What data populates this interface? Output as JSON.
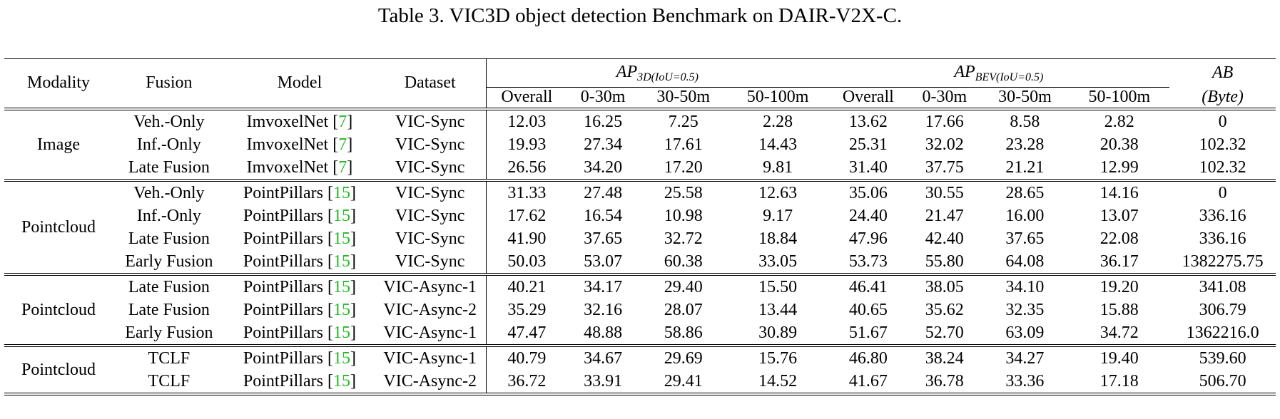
{
  "caption": "Table 3. VIC3D object detection Benchmark on DAIR-V2X-C.",
  "headers": {
    "modality": "Modality",
    "fusion": "Fusion",
    "model": "Model",
    "dataset": "Dataset",
    "ap3d_main": "AP",
    "ap3d_sub": "3D(IoU=0.5)",
    "apbev_main": "AP",
    "apbev_sub": "BEV(IoU=0.5)",
    "ab_main": "AB",
    "ab_unit": "(Byte)",
    "ranges": [
      "Overall",
      "0-30m",
      "30-50m",
      "50-100m"
    ]
  },
  "groups": [
    {
      "modality": "Image",
      "rows": [
        {
          "fusion": "Veh.-Only",
          "model": "ImvoxelNet",
          "ref": "7",
          "dataset": "VIC-Sync",
          "values": [
            "12.03",
            "16.25",
            "7.25",
            "2.28",
            "13.62",
            "17.66",
            "8.58",
            "2.82",
            "0"
          ]
        },
        {
          "fusion": "Inf.-Only",
          "model": "ImvoxelNet",
          "ref": "7",
          "dataset": "VIC-Sync",
          "values": [
            "19.93",
            "27.34",
            "17.61",
            "14.43",
            "25.31",
            "32.02",
            "23.28",
            "20.38",
            "102.32"
          ]
        },
        {
          "fusion": "Late Fusion",
          "model": "ImvoxelNet",
          "ref": "7",
          "dataset": "VIC-Sync",
          "values": [
            "26.56",
            "34.20",
            "17.20",
            "9.81",
            "31.40",
            "37.75",
            "21.21",
            "12.99",
            "102.32"
          ]
        }
      ]
    },
    {
      "modality": "Pointcloud",
      "rows": [
        {
          "fusion": "Veh.-Only",
          "model": "PointPillars",
          "ref": "15",
          "dataset": "VIC-Sync",
          "values": [
            "31.33",
            "27.48",
            "25.58",
            "12.63",
            "35.06",
            "30.55",
            "28.65",
            "14.16",
            "0"
          ]
        },
        {
          "fusion": "Inf.-Only",
          "model": "PointPillars",
          "ref": "15",
          "dataset": "VIC-Sync",
          "values": [
            "17.62",
            "16.54",
            "10.98",
            "9.17",
            "24.40",
            "21.47",
            "16.00",
            "13.07",
            "336.16"
          ]
        },
        {
          "fusion": "Late Fusion",
          "model": "PointPillars",
          "ref": "15",
          "dataset": "VIC-Sync",
          "values": [
            "41.90",
            "37.65",
            "32.72",
            "18.84",
            "47.96",
            "42.40",
            "37.65",
            "22.08",
            "336.16"
          ]
        },
        {
          "fusion": "Early Fusion",
          "model": "PointPillars",
          "ref": "15",
          "dataset": "VIC-Sync",
          "values": [
            "50.03",
            "53.07",
            "60.38",
            "33.05",
            "53.73",
            "55.80",
            "64.08",
            "36.17",
            "1382275.75"
          ]
        }
      ]
    },
    {
      "modality": "Pointcloud",
      "rows": [
        {
          "fusion": "Late Fusion",
          "model": "PointPillars",
          "ref": "15",
          "dataset": "VIC-Async-1",
          "values": [
            "40.21",
            "34.17",
            "29.40",
            "15.50",
            "46.41",
            "38.05",
            "34.10",
            "19.20",
            "341.08"
          ]
        },
        {
          "fusion": "Late Fusion",
          "model": "PointPillars",
          "ref": "15",
          "dataset": "VIC-Async-2",
          "values": [
            "35.29",
            "32.16",
            "28.07",
            "13.44",
            "40.65",
            "35.62",
            "32.35",
            "15.88",
            "306.79"
          ]
        },
        {
          "fusion": "Early Fusion",
          "model": "PointPillars",
          "ref": "15",
          "dataset": "VIC-Async-1",
          "values": [
            "47.47",
            "48.88",
            "58.86",
            "30.89",
            "51.67",
            "52.70",
            "63.09",
            "34.72",
            "1362216.0"
          ]
        }
      ]
    },
    {
      "modality": "Pointcloud",
      "rows": [
        {
          "fusion": "TCLF",
          "model": "PointPillars",
          "ref": "15",
          "dataset": "VIC-Async-1",
          "values": [
            "40.79",
            "34.67",
            "29.69",
            "15.76",
            "46.80",
            "38.24",
            "34.27",
            "19.40",
            "539.60"
          ]
        },
        {
          "fusion": "TCLF",
          "model": "PointPillars",
          "ref": "15",
          "dataset": "VIC-Async-2",
          "values": [
            "36.72",
            "33.91",
            "29.41",
            "14.52",
            "41.67",
            "36.78",
            "33.36",
            "17.18",
            "506.70"
          ]
        }
      ]
    }
  ],
  "colors": {
    "citation": "#22bb22",
    "text": "#000000",
    "background": "#ffffff"
  }
}
